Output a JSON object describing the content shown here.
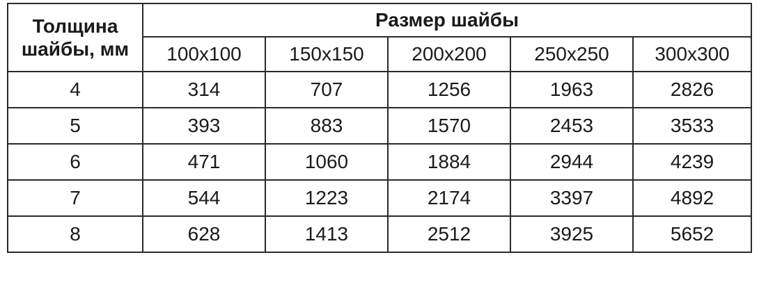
{
  "table": {
    "thickness_header": {
      "line1": "Толщина",
      "line2": "шайбы, мм"
    },
    "size_header": "Размер шайбы",
    "sizes": [
      "100x100",
      "150x150",
      "200x200",
      "250x250",
      "300x300"
    ],
    "rows": [
      {
        "thickness": "4",
        "values": [
          "314",
          "707",
          "1256",
          "1963",
          "2826"
        ]
      },
      {
        "thickness": "5",
        "values": [
          "393",
          "883",
          "1570",
          "2453",
          "3533"
        ]
      },
      {
        "thickness": "6",
        "values": [
          "471",
          "1060",
          "1884",
          "2944",
          "4239"
        ]
      },
      {
        "thickness": "7",
        "values": [
          "544",
          "1223",
          "2174",
          "3397",
          "4892"
        ]
      },
      {
        "thickness": "8",
        "values": [
          "628",
          "1413",
          "2512",
          "3925",
          "5652"
        ]
      }
    ]
  }
}
